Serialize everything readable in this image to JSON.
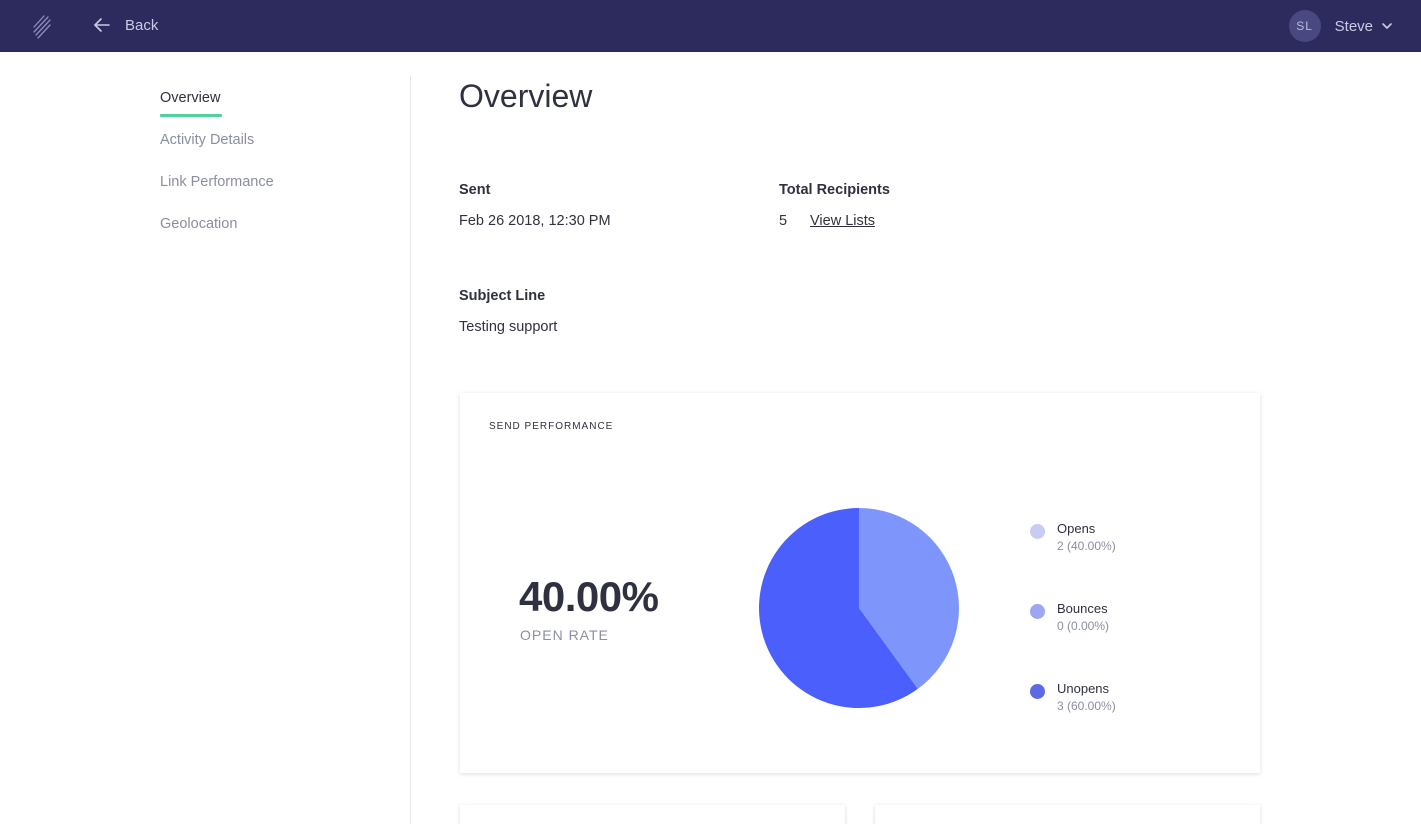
{
  "topbar": {
    "back_label": "Back",
    "user_initials": "SL",
    "user_name": "Steve"
  },
  "sidebar": {
    "items": [
      {
        "label": "Overview",
        "active": true
      },
      {
        "label": "Activity Details",
        "active": false
      },
      {
        "label": "Link Performance",
        "active": false
      },
      {
        "label": "Geolocation",
        "active": false
      }
    ]
  },
  "overview": {
    "title": "Overview",
    "sent_label": "Sent",
    "sent_value": "Feb 26 2018, 12:30 PM",
    "recipients_label": "Total Recipients",
    "recipients_value": "5",
    "view_lists_label": "View Lists",
    "subject_label": "Subject Line",
    "subject_value": "Testing support"
  },
  "send_performance": {
    "title": "SEND PERFORMANCE",
    "open_rate_value": "40.00%",
    "open_rate_label": "OPEN RATE",
    "legend": [
      {
        "name": "Opens",
        "count": "2 (40.00%)",
        "color": "#c8cbf2"
      },
      {
        "name": "Bounces",
        "count": "0 (0.00%)",
        "color": "#9da6f3"
      },
      {
        "name": "Unopens",
        "count": "3 (60.00%)",
        "color": "#5e69e4"
      }
    ]
  },
  "chart_data": {
    "type": "pie",
    "categories": [
      "Opens",
      "Bounces",
      "Unopens"
    ],
    "values": [
      2,
      0,
      3
    ],
    "colors": [
      "#7e96fb",
      "#9da6f3",
      "#4a5ffb"
    ]
  },
  "colors": {
    "topbar": "#2d2a5d",
    "active_underline": "#4fd1a0"
  }
}
